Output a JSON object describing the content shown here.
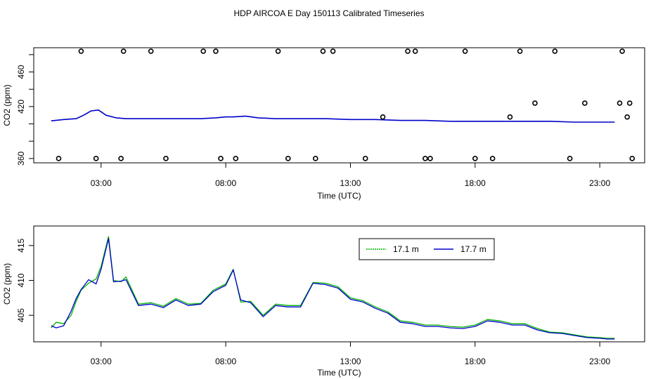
{
  "page": {
    "title": "HDP AIRCOA E  Day 150113  Calibrated Timeseries"
  },
  "colors": {
    "green": "#00b400",
    "blue": "#0000cc",
    "axis": "#000000"
  },
  "chart_data": [
    {
      "type": "line",
      "title": "",
      "xlabel": "Time (UTC)",
      "ylabel": "CO2 (ppm)",
      "xlim": [
        0.3,
        24.8
      ],
      "ylim": [
        355,
        488
      ],
      "x_ticks": [
        3,
        8,
        13,
        18,
        23
      ],
      "x_tick_labels": [
        "03:00",
        "08:00",
        "13:00",
        "18:00",
        "23:00"
      ],
      "y_ticks": [
        360,
        380,
        400,
        420,
        440,
        460,
        480
      ],
      "y_tick_labels": [
        "360",
        "",
        "",
        "420",
        "",
        "460",
        ""
      ],
      "grid": false,
      "series": [
        {
          "name": "",
          "color": "#0000cc",
          "x": [
            1.0,
            1.5,
            2.0,
            2.3,
            2.6,
            2.9,
            3.2,
            3.6,
            4.0,
            5.0,
            6.0,
            7.0,
            7.6,
            8.0,
            8.3,
            8.8,
            9.3,
            10.0,
            11.0,
            12.0,
            13.0,
            14.0,
            15.0,
            16.0,
            17.0,
            18.0,
            19.0,
            20.0,
            21.0,
            22.0,
            23.0,
            23.6
          ],
          "y": [
            403.5,
            405,
            406,
            410,
            415,
            416,
            410,
            407,
            406,
            406,
            406,
            406,
            407,
            408,
            408,
            409,
            407,
            406,
            406,
            406,
            405,
            405,
            404,
            404,
            403,
            403,
            403,
            403,
            403,
            402,
            402,
            402
          ]
        }
      ],
      "markers": {
        "style": "open-circle",
        "x": [
          1.3,
          2.2,
          2.8,
          3.8,
          3.9,
          5.0,
          5.6,
          7.1,
          7.6,
          7.8,
          8.4,
          10.1,
          10.5,
          11.6,
          11.9,
          12.3,
          13.6,
          14.3,
          15.3,
          15.6,
          16.0,
          16.2,
          17.6,
          18.0,
          18.7,
          19.4,
          19.8,
          20.4,
          21.2,
          21.8,
          22.4,
          23.8,
          23.9,
          24.1,
          24.2,
          24.3
        ],
        "y": [
          360,
          484,
          360,
          360,
          484,
          484,
          360,
          484,
          484,
          360,
          360,
          484,
          360,
          360,
          484,
          484,
          360,
          408,
          484,
          484,
          360,
          360,
          484,
          360,
          360,
          408,
          484,
          424,
          484,
          360,
          424,
          424,
          484,
          408,
          424,
          360
        ]
      }
    },
    {
      "type": "line",
      "title": "",
      "xlabel": "Time (UTC)",
      "ylabel": "CO2 (ppm)",
      "xlim": [
        0.3,
        24.8
      ],
      "ylim": [
        401.2,
        417.8
      ],
      "x_ticks": [
        3,
        8,
        13,
        18,
        23
      ],
      "x_tick_labels": [
        "03:00",
        "08:00",
        "13:00",
        "18:00",
        "23:00"
      ],
      "y_ticks": [
        405,
        410,
        415
      ],
      "y_tick_labels": [
        "405",
        "410",
        "415"
      ],
      "grid": false,
      "legend": {
        "placement": "top-center"
      },
      "series": [
        {
          "name": "17.1 m",
          "color": "#00b400",
          "x": [
            1.0,
            1.2,
            1.5,
            1.8,
            2.0,
            2.2,
            2.5,
            2.8,
            3.0,
            3.3,
            3.5,
            3.8,
            4.0,
            4.5,
            5.0,
            5.5,
            6.0,
            6.5,
            7.0,
            7.5,
            8.0,
            8.3,
            8.6,
            9.0,
            9.5,
            10.0,
            10.5,
            11.0,
            11.5,
            12.0,
            12.5,
            13.0,
            13.5,
            14.0,
            14.5,
            15.0,
            15.5,
            16.0,
            16.5,
            17.0,
            17.5,
            18.0,
            18.5,
            19.0,
            19.5,
            20.0,
            20.5,
            21.0,
            21.5,
            22.0,
            22.5,
            23.0,
            23.3,
            23.6
          ],
          "y": [
            403.2,
            404,
            403.8,
            405,
            407,
            408.6,
            409.6,
            410.2,
            412,
            416.3,
            410,
            409.8,
            410.5,
            406.6,
            406.8,
            406.3,
            407.4,
            406.6,
            406.7,
            408.6,
            409.5,
            411.6,
            406.9,
            407,
            405,
            406.6,
            406.4,
            406.4,
            409.7,
            409.6,
            409.1,
            407.5,
            407.1,
            406.2,
            405.5,
            404.2,
            404,
            403.6,
            403.6,
            403.4,
            403.3,
            403.6,
            404.4,
            404.2,
            403.8,
            403.8,
            403.1,
            402.6,
            402.5,
            402.2,
            401.9,
            401.8,
            401.7,
            401.7
          ]
        },
        {
          "name": "17.7 m",
          "color": "#0000cc",
          "x": [
            1.0,
            1.2,
            1.5,
            1.8,
            2.0,
            2.2,
            2.5,
            2.8,
            3.0,
            3.3,
            3.5,
            3.8,
            4.0,
            4.5,
            5.0,
            5.5,
            6.0,
            6.5,
            7.0,
            7.5,
            8.0,
            8.3,
            8.6,
            9.0,
            9.5,
            10.0,
            10.5,
            11.0,
            11.5,
            12.0,
            12.5,
            13.0,
            13.5,
            14.0,
            14.5,
            15.0,
            15.5,
            16.0,
            16.5,
            17.0,
            17.5,
            18.0,
            18.5,
            19.0,
            19.5,
            20.0,
            20.5,
            21.0,
            21.5,
            22.0,
            22.5,
            23.0,
            23.3,
            23.6
          ],
          "y": [
            403.5,
            403.2,
            403.5,
            405.6,
            407.4,
            408.7,
            410.1,
            409.5,
            411.6,
            416.0,
            409.8,
            409.9,
            410.1,
            406.4,
            406.6,
            406.1,
            407.2,
            406.4,
            406.6,
            408.4,
            409.3,
            411.5,
            407.2,
            406.8,
            404.8,
            406.4,
            406.2,
            406.2,
            409.6,
            409.4,
            408.9,
            407.3,
            406.9,
            406.0,
            405.3,
            404.0,
            403.8,
            403.4,
            403.4,
            403.2,
            403.1,
            403.4,
            404.2,
            404.0,
            403.6,
            403.6,
            402.9,
            402.5,
            402.4,
            402.1,
            401.8,
            401.7,
            401.6,
            401.6
          ]
        }
      ]
    }
  ]
}
